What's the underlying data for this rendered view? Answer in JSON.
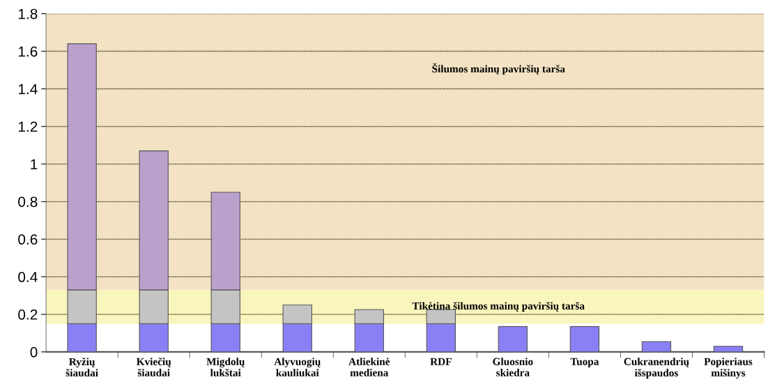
{
  "chart_data": {
    "type": "bar",
    "stacked": true,
    "categories": [
      "Ryžių\nšiaudai",
      "Kviečių\nšiaudai",
      "Migdolų\nlukštai",
      "Alyvuogių\nkauliukai",
      "Atliekinė\nmediena",
      "RDF",
      "Gluosnio\nskiedra",
      "Tuopa",
      "Cukranendrių\nišspaudos",
      "Popieriaus\nmišinys"
    ],
    "series": [
      {
        "color": "#8a80f5",
        "values": [
          0.15,
          0.15,
          0.15,
          0.15,
          0.15,
          0.15,
          0.135,
          0.135,
          0.055,
          0.03
        ]
      },
      {
        "color": "#c4c4c4",
        "values": [
          0.18,
          0.18,
          0.18,
          0.1,
          0.075,
          0.075,
          null,
          null,
          null,
          null
        ]
      },
      {
        "color": "#b9a1cc",
        "values": [
          1.31,
          0.74,
          0.52,
          null,
          null,
          null,
          null,
          null,
          null,
          null
        ]
      }
    ],
    "ylim": [
      0,
      1.8
    ],
    "yticks": [
      0,
      0.2,
      0.4,
      0.6,
      0.8,
      1,
      1.2,
      1.4,
      1.6,
      1.8
    ],
    "grid": "y",
    "bands": [
      {
        "axis": "y",
        "from": 0.15,
        "to": 0.33,
        "label": "Tikėtina šilumos mainų paviršių tarša",
        "color": "#f8f6bd"
      },
      {
        "axis": "y",
        "from": 0.33,
        "to": 1.8,
        "label": "Šilumos mainų paviršių tarša",
        "color": "#f3e3c4"
      }
    ]
  }
}
